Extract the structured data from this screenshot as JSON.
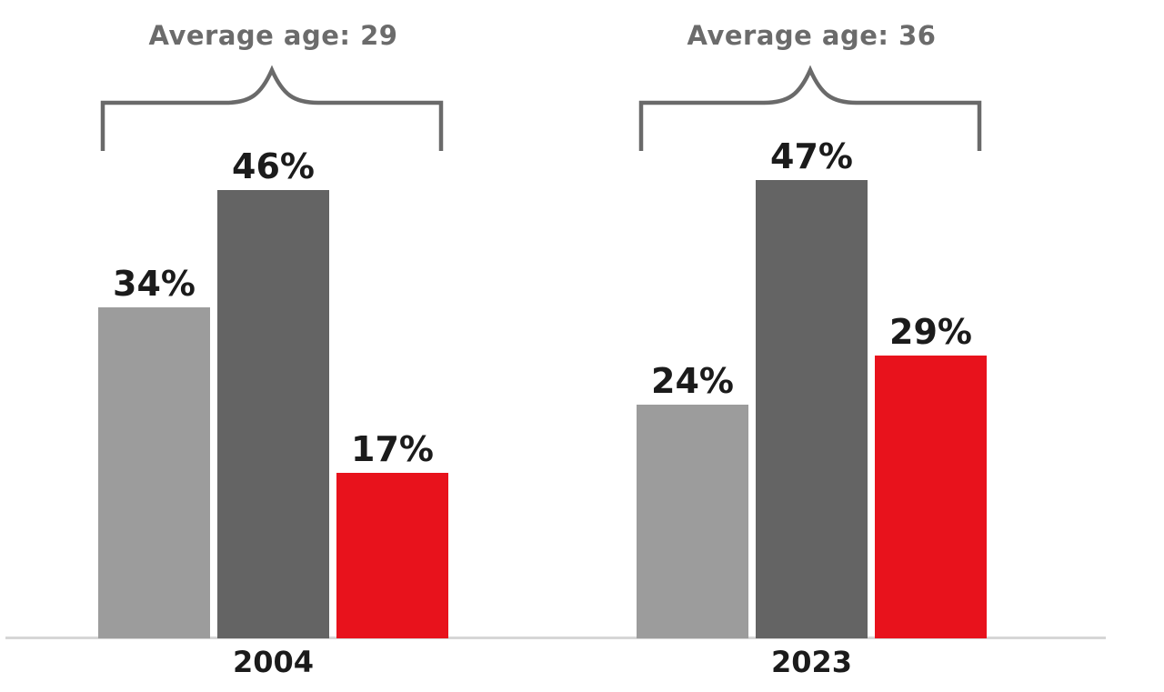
{
  "chart_data": {
    "type": "bar",
    "title": "",
    "xlabel": "",
    "ylabel": "",
    "unit": "%",
    "grid": false,
    "legend": "none",
    "categories": [
      "2004",
      "2023"
    ],
    "series": [
      {
        "name": "series-light-gray",
        "color": "#9c9c9c",
        "values": [
          34,
          24
        ]
      },
      {
        "name": "series-dark-gray",
        "color": "#646464",
        "values": [
          46,
          47
        ]
      },
      {
        "name": "series-red",
        "color": "#e8121c",
        "values": [
          17,
          29
        ]
      }
    ],
    "groups": [
      {
        "year": "2004",
        "annotation": "Average age: 29",
        "bars": [
          {
            "series": "series-light-gray",
            "value": 34,
            "label": "34%",
            "color": "#9c9c9c"
          },
          {
            "series": "series-dark-gray",
            "value": 46,
            "label": "46%",
            "color": "#646464"
          },
          {
            "series": "series-red",
            "value": 17,
            "label": "17%",
            "color": "#e8121c"
          }
        ]
      },
      {
        "year": "2023",
        "annotation": "Average age: 36",
        "bars": [
          {
            "series": "series-light-gray",
            "value": 24,
            "label": "24%",
            "color": "#9c9c9c"
          },
          {
            "series": "series-dark-gray",
            "value": 47,
            "label": "47%",
            "color": "#646464"
          },
          {
            "series": "series-red",
            "value": 29,
            "label": "29%",
            "color": "#e8121c"
          }
        ]
      }
    ],
    "colors": {
      "annotation_text": "#6b6b6b",
      "brace": "#6a6a6a",
      "value_label_text": "#1b1b1b",
      "year_label_text": "#1b1b1b",
      "axis_line": "#d6d6d6",
      "background": "#ffffff"
    }
  }
}
